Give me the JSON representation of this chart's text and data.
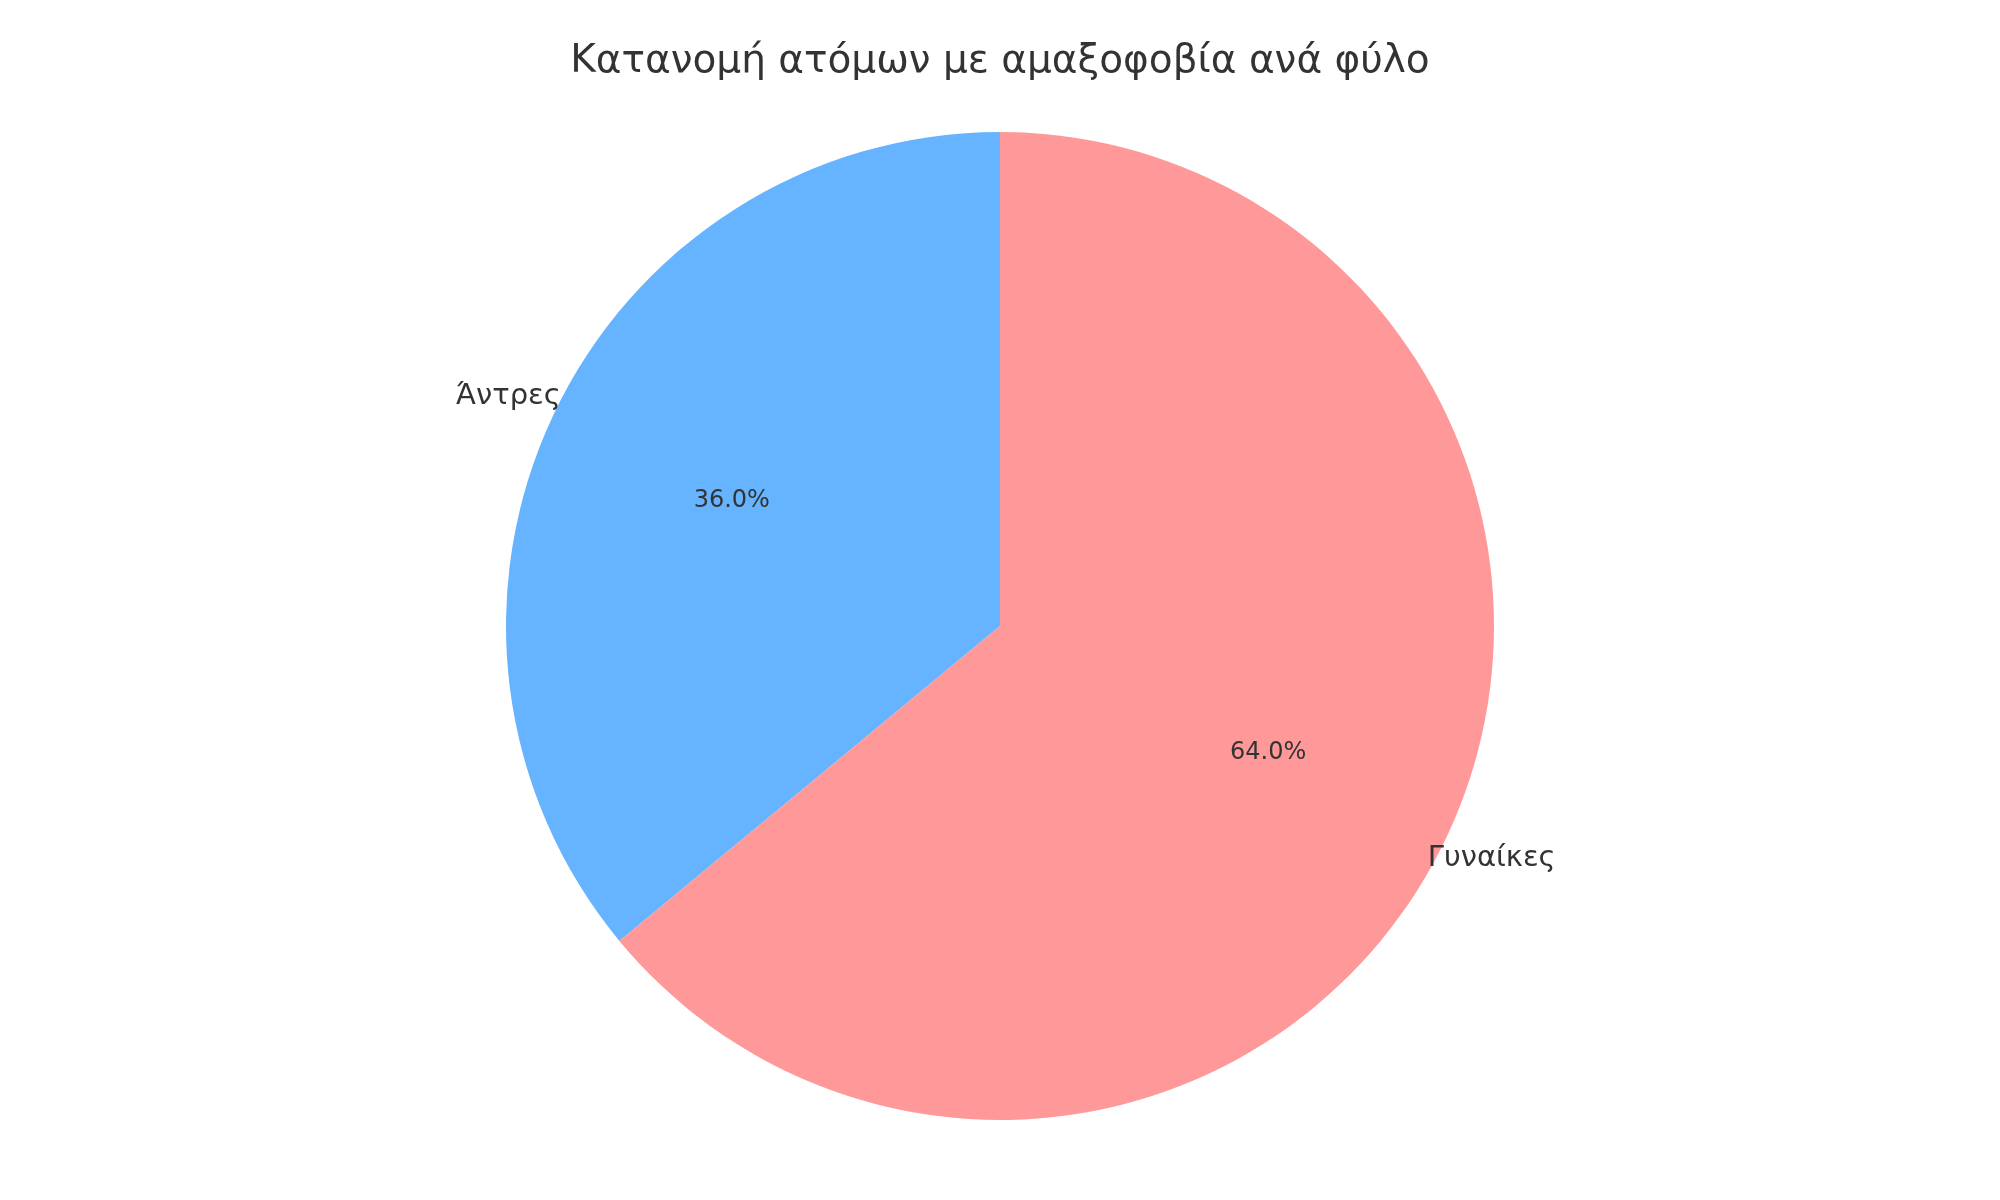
{
  "chart_data": {
    "type": "pie",
    "title": "Κατανομή ατόμων με αμαξοφοβία ανά φύλο",
    "categories": [
      "Άντρες",
      "Γυναίκες"
    ],
    "values": [
      36,
      64
    ],
    "colors": [
      "#66b3ff",
      "#ff9999"
    ],
    "value_labels": [
      "36.0%",
      "64.0%"
    ],
    "legend": false
  }
}
